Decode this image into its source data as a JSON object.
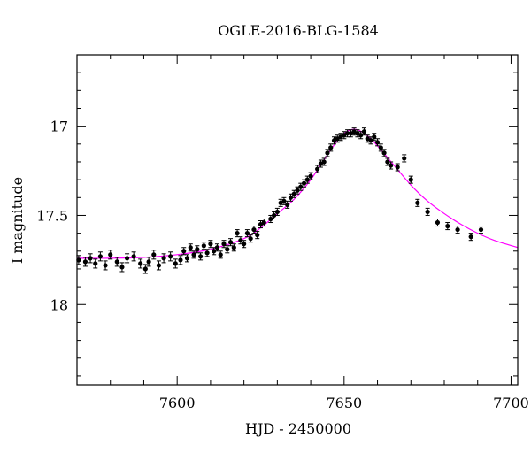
{
  "chart_data": {
    "type": "scatter",
    "title": "OGLE-2016-BLG-1584",
    "xlabel": "HJD - 2450000",
    "ylabel": "I magnitude",
    "xlim": [
      7570,
      7702
    ],
    "ylim": [
      18.45,
      16.6
    ],
    "y_inverted": true,
    "x_ticks": [
      7600,
      7650,
      7700
    ],
    "x_tick_labels": [
      "7600",
      "7650",
      "7700"
    ],
    "y_ticks": [
      17,
      17.5,
      18
    ],
    "y_tick_labels": [
      "17",
      "17.5",
      "18"
    ],
    "x_minor_step": 10,
    "y_minor_step": 0.1,
    "grid": false,
    "colors": {
      "points": "#000000",
      "model": "#ff00ff",
      "frame": "#000000"
    },
    "series": [
      {
        "type": "scatter",
        "error_bars": true,
        "x": [
          7570.5,
          7572.5,
          7574,
          7575.5,
          7577,
          7578.5,
          7580,
          7582,
          7583.5,
          7585,
          7587,
          7589,
          7590.5,
          7591.5,
          7593,
          7594.5,
          7596,
          7598,
          7599.5,
          7601,
          7602,
          7603,
          7604,
          7605,
          7606,
          7607,
          7608,
          7609,
          7610,
          7611,
          7612,
          7613,
          7614,
          7615,
          7616,
          7617,
          7618,
          7619,
          7620,
          7621,
          7622,
          7623,
          7624,
          7625,
          7626,
          7628,
          7629,
          7630,
          7631,
          7632,
          7633,
          7634,
          7635,
          7636,
          7637,
          7638,
          7639,
          7640,
          7642,
          7643,
          7644,
          7645,
          7646,
          7647,
          7648,
          7649,
          7650,
          7651,
          7652,
          7653,
          7654,
          7655,
          7656,
          7657,
          7658,
          7659,
          7660,
          7661,
          7662,
          7663,
          7664,
          7666,
          7668,
          7670,
          7672,
          7675,
          7678,
          7681,
          7684,
          7688,
          7691
        ],
        "y": [
          17.75,
          17.76,
          17.74,
          17.77,
          17.73,
          17.78,
          17.72,
          17.76,
          17.79,
          17.74,
          17.73,
          17.77,
          17.8,
          17.76,
          17.72,
          17.78,
          17.74,
          17.73,
          17.77,
          17.75,
          17.7,
          17.74,
          17.68,
          17.72,
          17.69,
          17.73,
          17.67,
          17.71,
          17.66,
          17.7,
          17.68,
          17.72,
          17.66,
          17.69,
          17.65,
          17.68,
          17.6,
          17.64,
          17.66,
          17.6,
          17.63,
          17.58,
          17.61,
          17.55,
          17.54,
          17.52,
          17.5,
          17.48,
          17.43,
          17.42,
          17.44,
          17.4,
          17.38,
          17.36,
          17.34,
          17.32,
          17.3,
          17.28,
          17.24,
          17.21,
          17.2,
          17.15,
          17.12,
          17.08,
          17.07,
          17.06,
          17.05,
          17.04,
          17.04,
          17.03,
          17.04,
          17.05,
          17.03,
          17.07,
          17.08,
          17.06,
          17.09,
          17.12,
          17.15,
          17.2,
          17.22,
          17.23,
          17.18,
          17.3,
          17.43,
          17.48,
          17.54,
          17.56,
          17.58,
          17.62,
          17.58
        ],
        "yerr": [
          0.025,
          0.025,
          0.025,
          0.025,
          0.025,
          0.025,
          0.025,
          0.025,
          0.025,
          0.025,
          0.025,
          0.025,
          0.025,
          0.025,
          0.025,
          0.025,
          0.025,
          0.025,
          0.025,
          0.025,
          0.02,
          0.02,
          0.02,
          0.02,
          0.02,
          0.02,
          0.02,
          0.02,
          0.02,
          0.02,
          0.02,
          0.02,
          0.02,
          0.02,
          0.02,
          0.02,
          0.02,
          0.02,
          0.02,
          0.02,
          0.02,
          0.02,
          0.02,
          0.02,
          0.02,
          0.02,
          0.02,
          0.02,
          0.02,
          0.02,
          0.02,
          0.02,
          0.02,
          0.02,
          0.02,
          0.02,
          0.02,
          0.02,
          0.02,
          0.02,
          0.02,
          0.02,
          0.02,
          0.02,
          0.02,
          0.02,
          0.02,
          0.02,
          0.02,
          0.02,
          0.02,
          0.02,
          0.02,
          0.02,
          0.02,
          0.02,
          0.02,
          0.02,
          0.02,
          0.02,
          0.02,
          0.02,
          0.02,
          0.02,
          0.02,
          0.02,
          0.02,
          0.02,
          0.02,
          0.02,
          0.02
        ]
      },
      {
        "type": "line",
        "x": [
          7570,
          7580,
          7590,
          7600,
          7610,
          7620,
          7625,
          7630,
          7635,
          7640,
          7645,
          7648,
          7650,
          7652,
          7654,
          7656,
          7658,
          7660,
          7665,
          7670,
          7675,
          7680,
          7685,
          7690,
          7695,
          7702
        ],
        "y": [
          17.74,
          17.74,
          17.735,
          17.72,
          17.69,
          17.63,
          17.57,
          17.49,
          17.41,
          17.3,
          17.16,
          17.08,
          17.04,
          17.02,
          17.02,
          17.04,
          17.07,
          17.11,
          17.22,
          17.33,
          17.42,
          17.49,
          17.55,
          17.6,
          17.64,
          17.68
        ]
      }
    ]
  }
}
